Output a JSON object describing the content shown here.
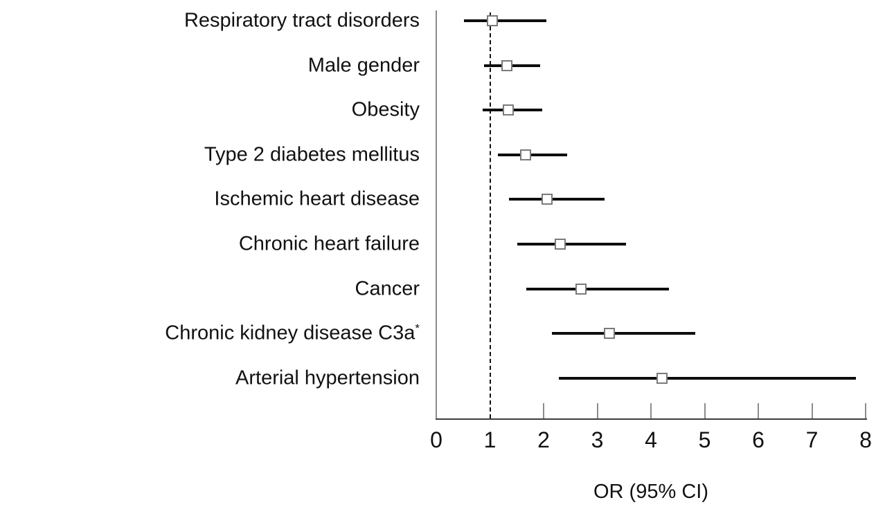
{
  "figure": {
    "background": "#ffffff"
  },
  "chart_data": {
    "type": "scatter",
    "subtype": "forest-plot",
    "title": "",
    "xlabel": "OR (95% CI)",
    "ylabel": "",
    "xlim": [
      0,
      8
    ],
    "xticks": [
      "0",
      "1",
      "2",
      "3",
      "4",
      "5",
      "6",
      "7",
      "8"
    ],
    "xtick_values": [
      0,
      1,
      2,
      3,
      4,
      5,
      6,
      7,
      8
    ],
    "reference_line_x": 1,
    "grid": "off",
    "legend": "none",
    "marker_shape": "open-square",
    "colors": {
      "ci_line": "#0d0d0d",
      "marker_fill": "#ffffff",
      "marker_border": "#7a7a7a",
      "axis": "#8c8c8c",
      "text": "#111111"
    },
    "rows": [
      {
        "label": "Respiratory tract disorders",
        "superscript": "",
        "or": 1.05,
        "ci_low": 0.51,
        "ci_high": 2.05
      },
      {
        "label": "Male gender",
        "superscript": "",
        "or": 1.32,
        "ci_low": 0.89,
        "ci_high": 1.94
      },
      {
        "label": "Obesity",
        "superscript": "",
        "or": 1.34,
        "ci_low": 0.87,
        "ci_high": 1.97
      },
      {
        "label": "Type 2 diabetes mellitus",
        "superscript": "",
        "or": 1.66,
        "ci_low": 1.15,
        "ci_high": 2.44
      },
      {
        "label": "Ischemic heart disease",
        "superscript": "",
        "or": 2.07,
        "ci_low": 1.36,
        "ci_high": 3.13
      },
      {
        "label": "Chronic heart failure",
        "superscript": "",
        "or": 2.31,
        "ci_low": 1.51,
        "ci_high": 3.54
      },
      {
        "label": "Cancer",
        "superscript": "",
        "or": 2.7,
        "ci_low": 1.68,
        "ci_high": 4.34
      },
      {
        "label": "Chronic kidney disease C3a",
        "superscript": "*",
        "or": 3.23,
        "ci_low": 2.15,
        "ci_high": 4.82
      },
      {
        "label": "Arterial hypertension",
        "superscript": "",
        "or": 4.2,
        "ci_low": 2.28,
        "ci_high": 7.82
      }
    ]
  }
}
